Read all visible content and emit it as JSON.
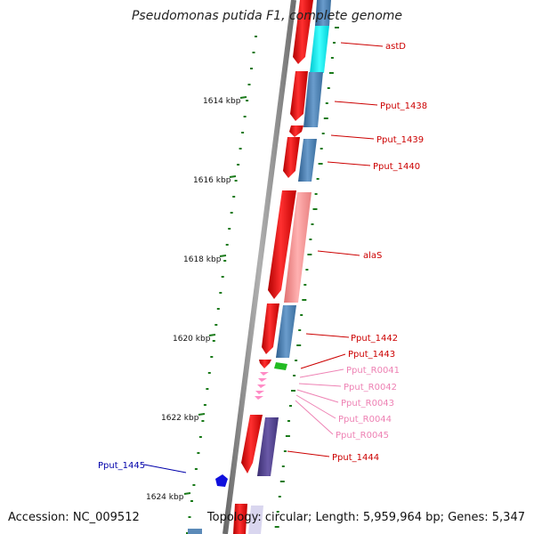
{
  "title": "Pseudomonas putida F1, complete genome",
  "accession": "Accession: NC_009512",
  "topology": "Topology: circular; Length: 5,959,964 bp; Genes: 5,347",
  "colors": {
    "backbone": "#8a8a8a",
    "cds_forward": "#ee1111",
    "cds_gene": "#4682b4",
    "aa_metabolism": "#00e5ee",
    "trna_metabolism": "#f08080",
    "rrna": "#ff8cc6",
    "green_feature": "#22bb22",
    "reverse_cds": "#1010dd",
    "purple_feature": "#4b3c8c",
    "label_forward": "#cc0000",
    "label_rna": "#ee82b4",
    "label_reverse": "#0000aa",
    "tick": "#1a7a1a"
  },
  "scale_labels": [
    "1614 kbp",
    "1616 kbp",
    "1618 kbp",
    "1620 kbp",
    "1622 kbp",
    "1624 kbp"
  ],
  "feature_labels": [
    "astD",
    "Pput_1438",
    "Pput_1439",
    "Pput_1440",
    "alaS",
    "Pput_1442",
    "Pput_1443",
    "Pput_R0041",
    "Pput_R0042",
    "Pput_R0043",
    "Pput_R0044",
    "Pput_R0045",
    "Pput_1444",
    "Pput_1445"
  ]
}
